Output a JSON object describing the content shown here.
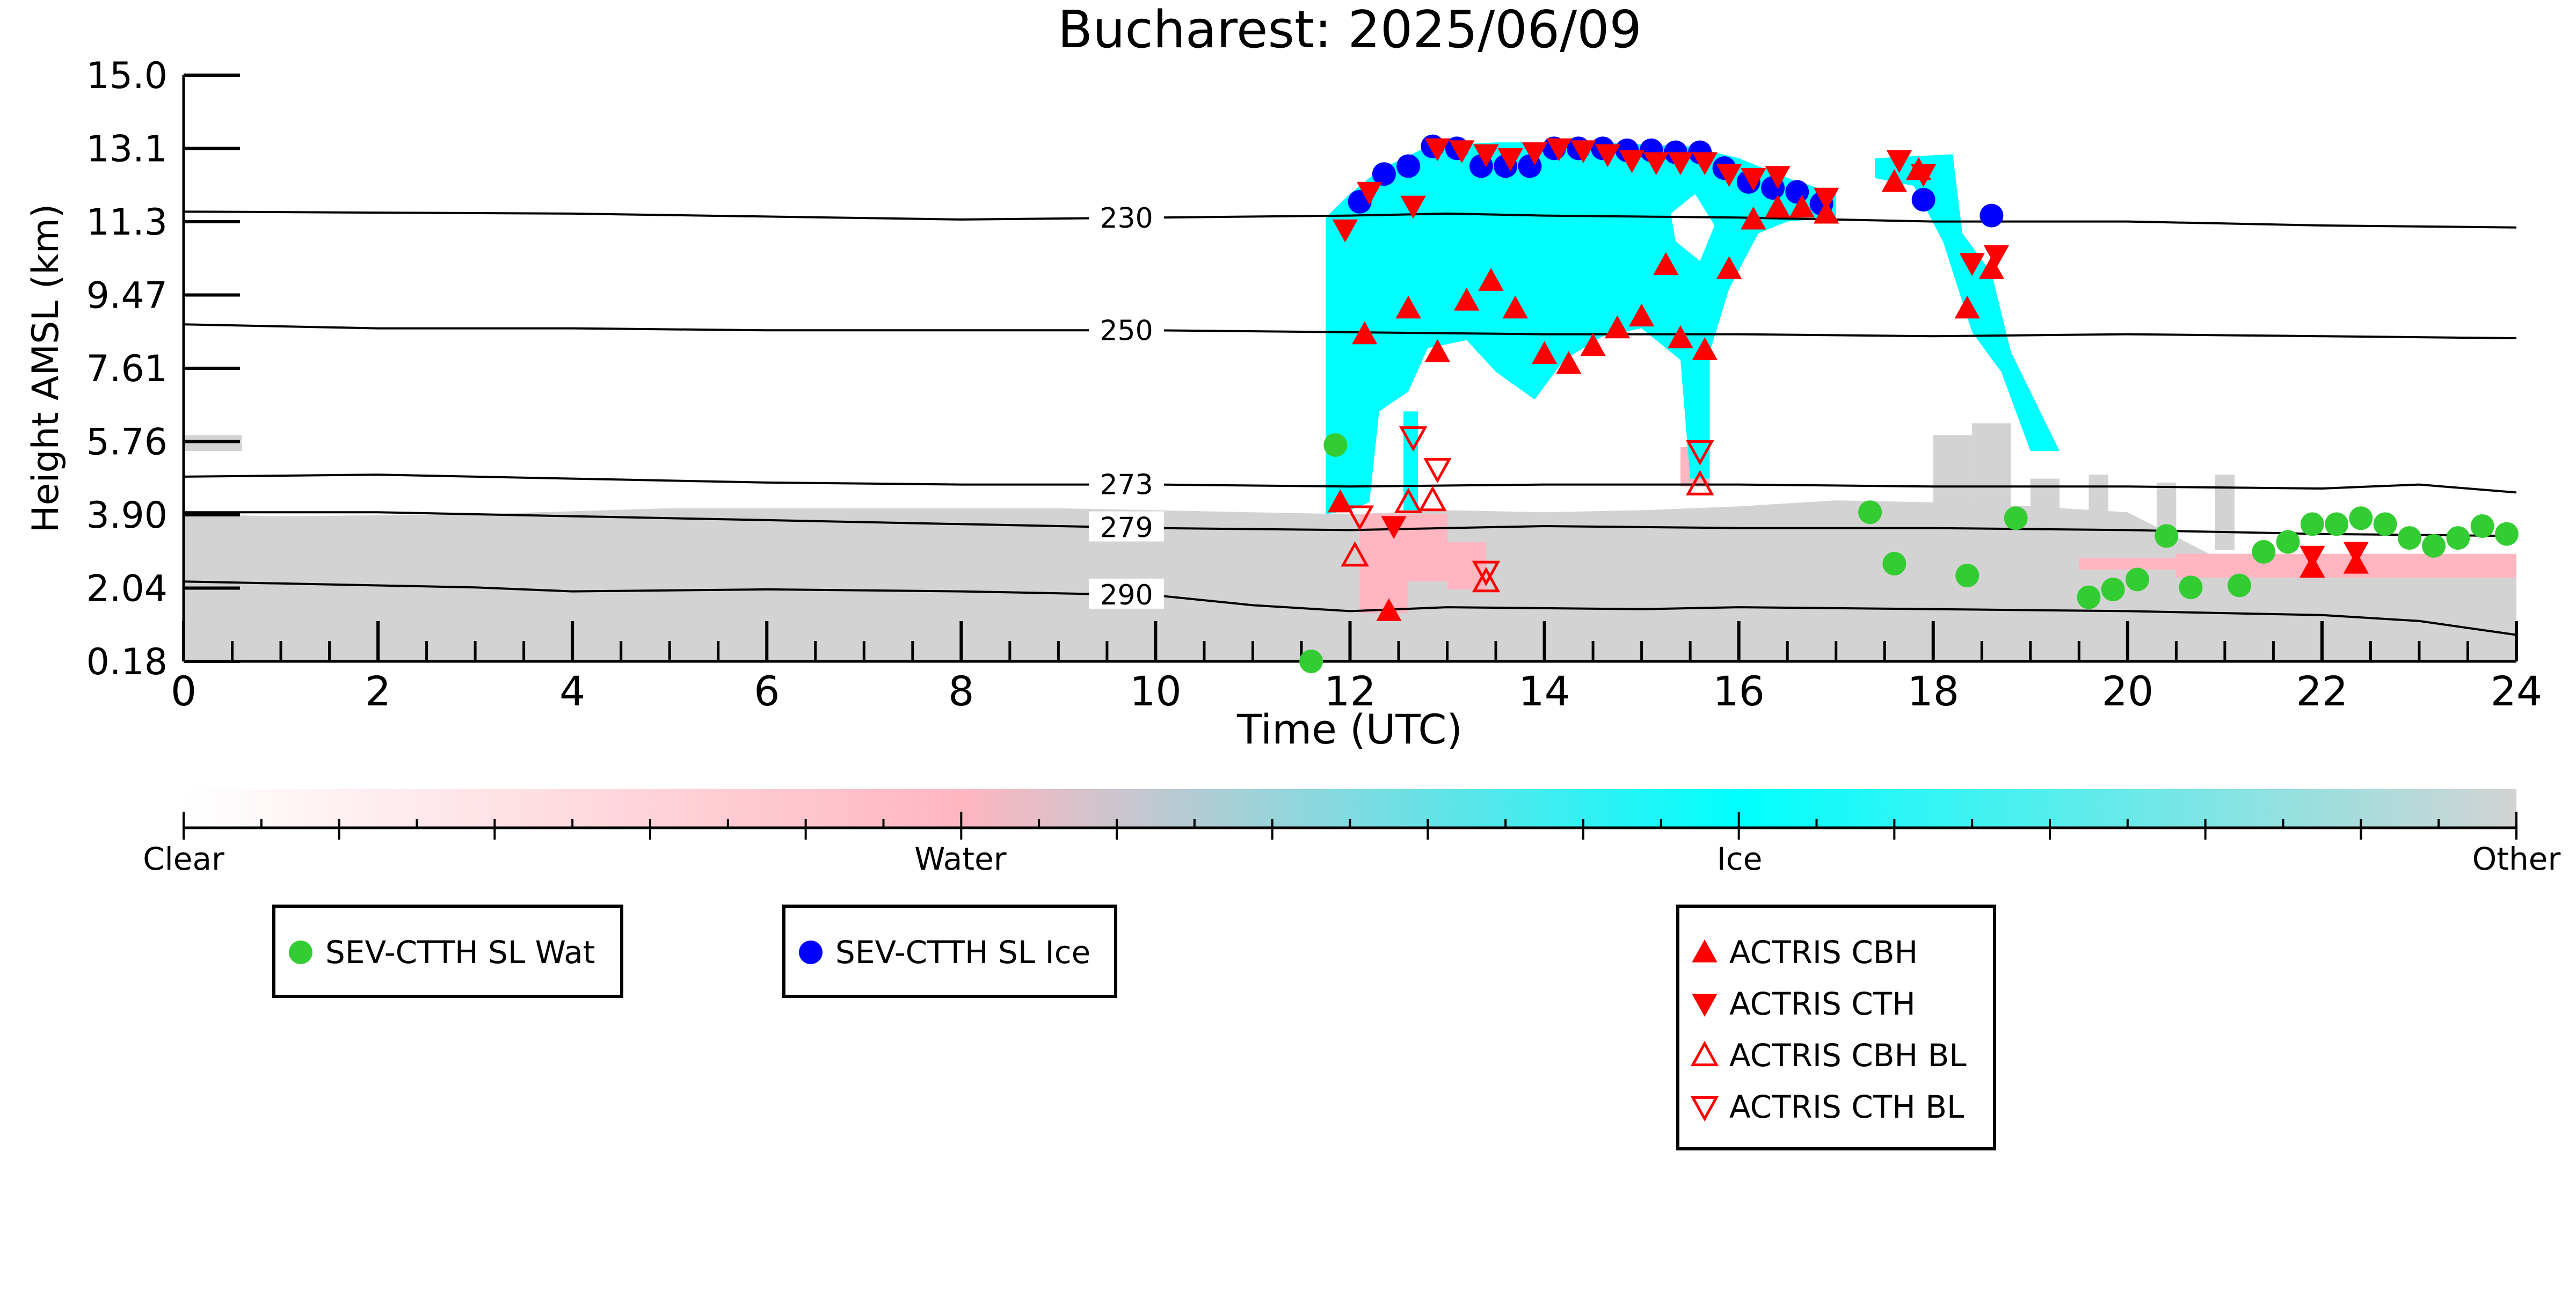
{
  "chart_data": {
    "type": "scatter",
    "title": "Bucharest: 2025/06/09",
    "xlabel": "Time (UTC)",
    "ylabel": "Height AMSL (km)",
    "xlim": [
      0,
      24
    ],
    "ylim": [
      0.18,
      15.0
    ],
    "x_ticks": [
      "0",
      "2",
      "4",
      "6",
      "8",
      "10",
      "12",
      "14",
      "16",
      "18",
      "20",
      "22",
      "24"
    ],
    "y_ticks": [
      "0.18",
      "2.04",
      "3.90",
      "5.76",
      "7.61",
      "9.47",
      "11.3",
      "13.1",
      "15.0"
    ],
    "colorbar": {
      "labels": [
        {
          "text": "Clear",
          "position": 0.0
        },
        {
          "text": "Water",
          "position": 0.333
        },
        {
          "text": "Ice",
          "position": 0.667
        },
        {
          "text": "Other",
          "position": 1.0
        }
      ],
      "colors": [
        "#ffffff",
        "#ffb6c1",
        "#00ffff",
        "#d3d3d3"
      ]
    },
    "temperature_contours": [
      {
        "label": "230",
        "points": [
          [
            0,
            11.55
          ],
          [
            4,
            11.5
          ],
          [
            8,
            11.35
          ],
          [
            10,
            11.4
          ],
          [
            12,
            11.45
          ],
          [
            13,
            11.5
          ],
          [
            14,
            11.45
          ],
          [
            16,
            11.4
          ],
          [
            18,
            11.3
          ],
          [
            20,
            11.3
          ],
          [
            22,
            11.2
          ],
          [
            24,
            11.15
          ]
        ]
      },
      {
        "label": "250",
        "points": [
          [
            0,
            8.7
          ],
          [
            2,
            8.6
          ],
          [
            4,
            8.6
          ],
          [
            6,
            8.55
          ],
          [
            8,
            8.55
          ],
          [
            10,
            8.55
          ],
          [
            12,
            8.5
          ],
          [
            14,
            8.45
          ],
          [
            16,
            8.45
          ],
          [
            18,
            8.4
          ],
          [
            20,
            8.45
          ],
          [
            22,
            8.4
          ],
          [
            24,
            8.35
          ]
        ]
      },
      {
        "label": "273",
        "points": [
          [
            0,
            4.85
          ],
          [
            2,
            4.9
          ],
          [
            4,
            4.8
          ],
          [
            6,
            4.7
          ],
          [
            8,
            4.65
          ],
          [
            10,
            4.65
          ],
          [
            12,
            4.6
          ],
          [
            14,
            4.65
          ],
          [
            16,
            4.65
          ],
          [
            18,
            4.6
          ],
          [
            20,
            4.6
          ],
          [
            22,
            4.55
          ],
          [
            23,
            4.65
          ],
          [
            24,
            4.45
          ]
        ]
      },
      {
        "label": "279",
        "points": [
          [
            0,
            3.95
          ],
          [
            2,
            3.95
          ],
          [
            4,
            3.85
          ],
          [
            6,
            3.75
          ],
          [
            8,
            3.65
          ],
          [
            10,
            3.55
          ],
          [
            12,
            3.5
          ],
          [
            14,
            3.6
          ],
          [
            16,
            3.55
          ],
          [
            18,
            3.55
          ],
          [
            20,
            3.5
          ],
          [
            22,
            3.4
          ],
          [
            24,
            3.35
          ]
        ]
      },
      {
        "label": "290",
        "points": [
          [
            0,
            2.2
          ],
          [
            2,
            2.1
          ],
          [
            3,
            2.05
          ],
          [
            4,
            1.95
          ],
          [
            6,
            2.0
          ],
          [
            8,
            1.95
          ],
          [
            10,
            1.85
          ],
          [
            11,
            1.6
          ],
          [
            12,
            1.45
          ],
          [
            13,
            1.55
          ],
          [
            15,
            1.5
          ],
          [
            16,
            1.55
          ],
          [
            18,
            1.5
          ],
          [
            20,
            1.45
          ],
          [
            22,
            1.35
          ],
          [
            23,
            1.2
          ],
          [
            24,
            0.85
          ]
        ]
      }
    ],
    "series": [
      {
        "name": "SEV-CTTH SL Wat",
        "marker": "circle",
        "color": "#33cc33",
        "points": [
          [
            11.6,
            0.18
          ],
          [
            11.85,
            5.65
          ],
          [
            17.35,
            3.95
          ],
          [
            17.6,
            2.65
          ],
          [
            18.35,
            2.35
          ],
          [
            18.85,
            3.8
          ],
          [
            19.6,
            1.8
          ],
          [
            19.85,
            2.0
          ],
          [
            20.1,
            2.25
          ],
          [
            20.4,
            3.35
          ],
          [
            20.65,
            2.05
          ],
          [
            21.15,
            2.1
          ],
          [
            21.4,
            2.95
          ],
          [
            21.65,
            3.2
          ],
          [
            21.9,
            3.65
          ],
          [
            22.15,
            3.65
          ],
          [
            22.4,
            3.8
          ],
          [
            22.65,
            3.65
          ],
          [
            22.9,
            3.3
          ],
          [
            23.15,
            3.1
          ],
          [
            23.4,
            3.3
          ],
          [
            23.65,
            3.6
          ],
          [
            23.9,
            3.4
          ]
        ]
      },
      {
        "name": "SEV-CTTH SL Ice",
        "marker": "circle",
        "color": "#0000ff",
        "points": [
          [
            12.1,
            11.8
          ],
          [
            12.35,
            12.5
          ],
          [
            12.6,
            12.7
          ],
          [
            12.85,
            13.2
          ],
          [
            13.1,
            13.15
          ],
          [
            13.35,
            12.7
          ],
          [
            13.6,
            12.7
          ],
          [
            13.85,
            12.7
          ],
          [
            14.1,
            13.15
          ],
          [
            14.35,
            13.15
          ],
          [
            14.6,
            13.15
          ],
          [
            14.85,
            13.1
          ],
          [
            15.1,
            13.1
          ],
          [
            15.35,
            13.05
          ],
          [
            15.6,
            13.05
          ],
          [
            15.85,
            12.65
          ],
          [
            16.1,
            12.3
          ],
          [
            16.35,
            12.15
          ],
          [
            16.6,
            12.05
          ],
          [
            16.85,
            11.75
          ],
          [
            17.9,
            11.85
          ],
          [
            18.6,
            11.45
          ]
        ]
      },
      {
        "name": "ACTRIS CBH",
        "marker": "triangle-up",
        "color": "#ff0000",
        "points": [
          [
            11.9,
            4.2
          ],
          [
            12.15,
            8.45
          ],
          [
            12.4,
            1.45
          ],
          [
            12.6,
            9.1
          ],
          [
            12.9,
            8.0
          ],
          [
            13.2,
            9.3
          ],
          [
            13.45,
            9.8
          ],
          [
            13.7,
            9.1
          ],
          [
            14.0,
            7.95
          ],
          [
            14.25,
            7.7
          ],
          [
            14.5,
            8.15
          ],
          [
            14.75,
            8.6
          ],
          [
            15.0,
            8.9
          ],
          [
            15.25,
            10.2
          ],
          [
            15.4,
            8.35
          ],
          [
            15.65,
            8.05
          ],
          [
            15.9,
            10.1
          ],
          [
            16.15,
            11.35
          ],
          [
            16.4,
            11.65
          ],
          [
            16.65,
            11.65
          ],
          [
            16.9,
            11.5
          ],
          [
            17.6,
            12.3
          ],
          [
            17.85,
            12.6
          ],
          [
            18.35,
            9.1
          ],
          [
            18.6,
            10.1
          ],
          [
            21.9,
            2.55
          ],
          [
            22.35,
            2.65
          ]
        ]
      },
      {
        "name": "ACTRIS CTH",
        "marker": "triangle-down",
        "color": "#ff0000",
        "points": [
          [
            11.95,
            11.1
          ],
          [
            12.2,
            12.05
          ],
          [
            12.45,
            3.6
          ],
          [
            12.65,
            11.7
          ],
          [
            12.9,
            13.15
          ],
          [
            13.15,
            13.1
          ],
          [
            13.4,
            13.0
          ],
          [
            13.65,
            12.9
          ],
          [
            13.9,
            13.05
          ],
          [
            14.15,
            13.15
          ],
          [
            14.4,
            13.1
          ],
          [
            14.65,
            13.0
          ],
          [
            14.9,
            12.85
          ],
          [
            15.15,
            12.8
          ],
          [
            15.4,
            12.8
          ],
          [
            15.65,
            12.8
          ],
          [
            15.9,
            12.5
          ],
          [
            16.15,
            12.4
          ],
          [
            16.4,
            12.45
          ],
          [
            16.9,
            11.9
          ],
          [
            17.65,
            12.85
          ],
          [
            17.9,
            12.5
          ],
          [
            18.4,
            10.25
          ],
          [
            18.65,
            10.45
          ],
          [
            21.9,
            2.85
          ],
          [
            22.35,
            2.95
          ]
        ]
      },
      {
        "name": "ACTRIS CBH BL",
        "marker": "triangle-up-open",
        "color": "#ff0000",
        "points": [
          [
            12.05,
            2.85
          ],
          [
            12.6,
            4.2
          ],
          [
            12.85,
            4.25
          ],
          [
            13.4,
            2.2
          ],
          [
            15.6,
            4.65
          ]
        ]
      },
      {
        "name": "ACTRIS CTH BL",
        "marker": "triangle-down-open",
        "color": "#ff0000",
        "points": [
          [
            12.1,
            3.85
          ],
          [
            12.65,
            5.85
          ],
          [
            12.9,
            5.05
          ],
          [
            13.4,
            2.45
          ],
          [
            15.6,
            5.5
          ]
        ]
      }
    ],
    "legends": [
      {
        "entries": [
          "SEV-CTTH SL Wat"
        ]
      },
      {
        "entries": [
          "SEV-CTTH SL Ice"
        ]
      },
      {
        "entries": [
          "ACTRIS CBH",
          "ACTRIS CTH",
          "ACTRIS CBH BL",
          "ACTRIS CTH BL"
        ]
      }
    ]
  }
}
